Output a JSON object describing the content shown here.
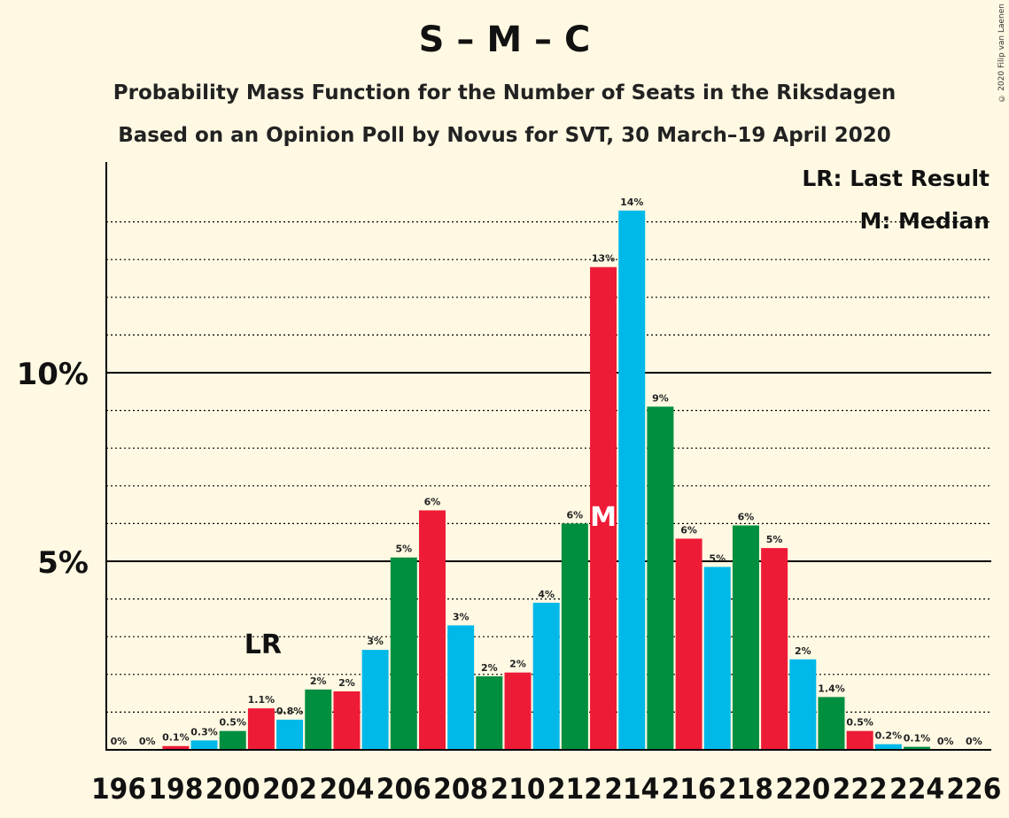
{
  "chart_data": {
    "type": "bar",
    "title": "S – M – C",
    "subtitle_1": "Probability Mass Function for the Number of Seats in the Riksdagen",
    "subtitle_2": "Based on an Opinion Poll by Novus for SVT, 30 March–19 April 2020",
    "copyright": "© 2020 Filip van Laenen",
    "legend": {
      "lr": "LR: Last Result",
      "m": "M: Median",
      "placement": "top-right"
    },
    "lr_seat": 201,
    "lr_marker": "LR",
    "median_seat": 213,
    "median_marker": "M",
    "ylim": [
      0,
      15
    ],
    "y_ticks": [
      {
        "value": 5,
        "label": "5%"
      },
      {
        "value": 10,
        "label": "10%"
      }
    ],
    "x_tick_labels": [
      "196",
      "198",
      "200",
      "202",
      "204",
      "206",
      "208",
      "210",
      "212",
      "214",
      "216",
      "218",
      "220",
      "222",
      "224",
      "226"
    ],
    "seats": [
      196,
      197,
      198,
      199,
      200,
      201,
      202,
      203,
      204,
      205,
      206,
      207,
      208,
      209,
      210,
      211,
      212,
      213,
      214,
      215,
      216,
      217,
      218,
      219,
      220,
      221,
      222,
      223,
      224,
      225,
      226
    ],
    "values": [
      0,
      0,
      0.1,
      0.25,
      0.5,
      1.1,
      0.8,
      1.6,
      1.55,
      2.65,
      5.1,
      6.35,
      3.3,
      1.95,
      2.05,
      3.9,
      6.0,
      12.8,
      14.3,
      9.1,
      5.6,
      4.85,
      5.95,
      5.35,
      2.4,
      1.4,
      0.5,
      0.15,
      0.08,
      0,
      0
    ],
    "value_labels": [
      "0%",
      "0%",
      "0.1%",
      "0.3%",
      "0.5%",
      "1.1%",
      "0.8%",
      "2%",
      "2%",
      "3%",
      "5%",
      "6%",
      "3%",
      "2%",
      "2%",
      "4%",
      "6%",
      "13%",
      "14%",
      "9%",
      "6%",
      "5%",
      "6%",
      "5%",
      "2%",
      "1.4%",
      "0.5%",
      "0.2%",
      "0.1%",
      "0%",
      "0%"
    ],
    "palette": [
      "#00B9E9",
      "#008F3F",
      "#EE1B36"
    ]
  }
}
